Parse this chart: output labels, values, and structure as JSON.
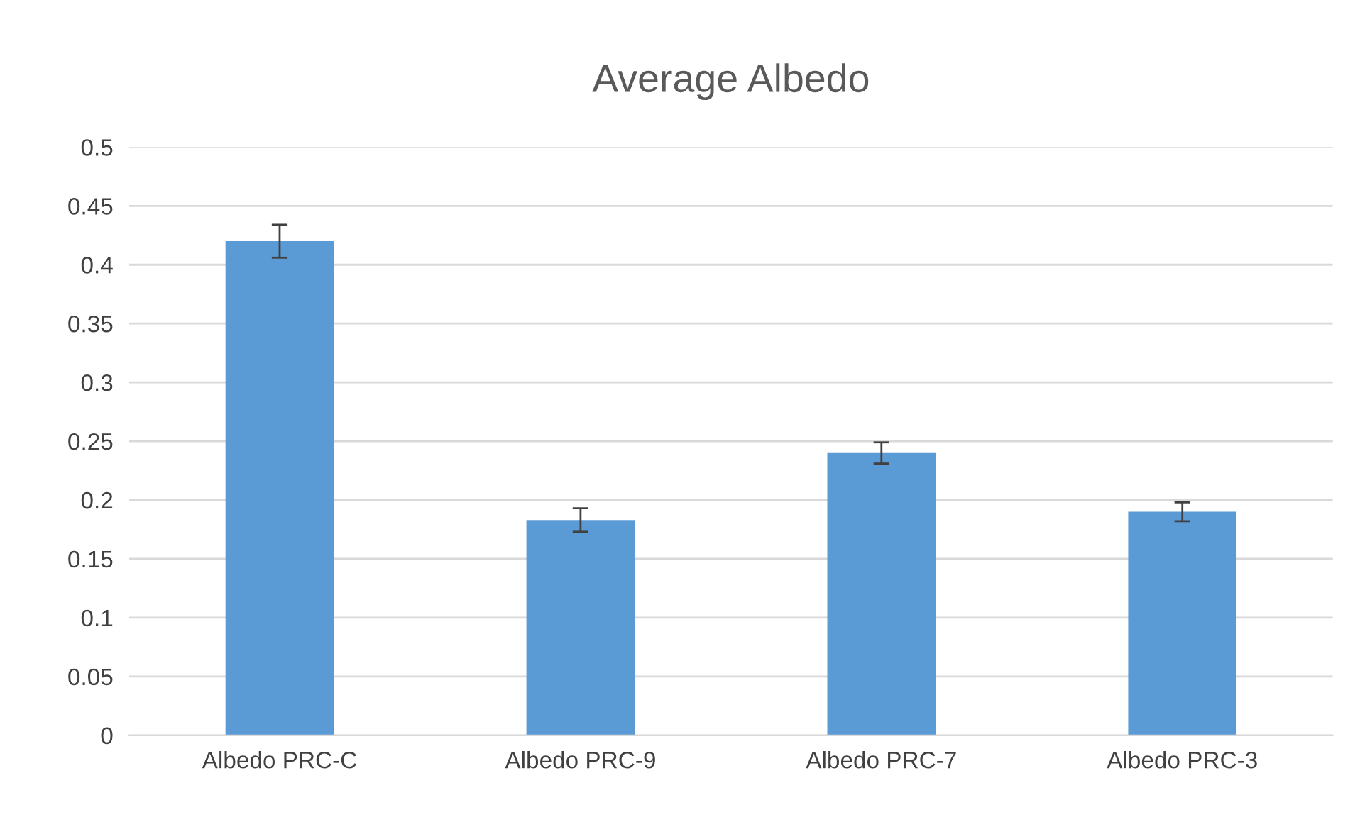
{
  "chart_data": {
    "type": "bar",
    "title": "Average Albedo",
    "categories": [
      "Albedo PRC-C",
      "Albedo PRC-9",
      "Albedo PRC-7",
      "Albedo PRC-3"
    ],
    "values": [
      0.42,
      0.183,
      0.24,
      0.19
    ],
    "errors": [
      0.014,
      0.01,
      0.009,
      0.008
    ],
    "color": "#5b9bd5",
    "ylim": [
      0,
      0.5
    ],
    "yticks": [
      {
        "value": 0,
        "label": "0"
      },
      0.05,
      0.1,
      0.15,
      0.2,
      0.25,
      0.3,
      0.35,
      0.4,
      0.45,
      0.5
    ],
    "grid": "y"
  }
}
